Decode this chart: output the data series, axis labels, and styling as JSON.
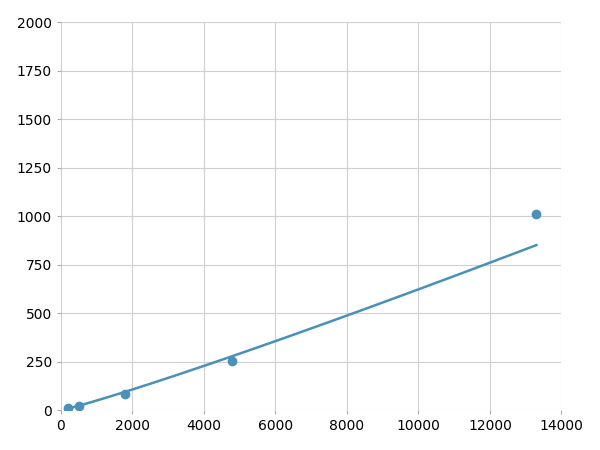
{
  "x": [
    200,
    500,
    1800,
    4800,
    13300
  ],
  "y": [
    10,
    22,
    82,
    252,
    1010
  ],
  "line_color": "#4a90b8",
  "marker_color": "#4a90b8",
  "marker_size": 6,
  "line_width": 1.8,
  "xlim": [
    0,
    14000
  ],
  "ylim": [
    0,
    2000
  ],
  "xticks": [
    0,
    2000,
    4000,
    6000,
    8000,
    10000,
    12000,
    14000
  ],
  "yticks": [
    0,
    250,
    500,
    750,
    1000,
    1250,
    1500,
    1750,
    2000
  ],
  "grid_color": "#d0d0d0",
  "background_color": "#ffffff",
  "tick_fontsize": 10
}
